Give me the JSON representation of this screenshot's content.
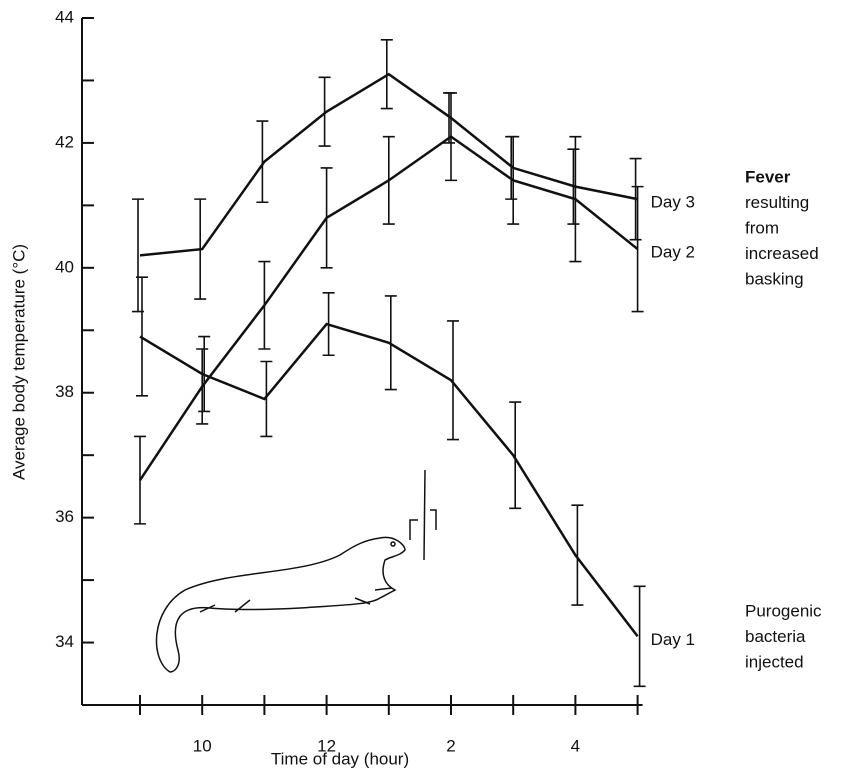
{
  "chart_data": {
    "type": "line",
    "ylabel": "Average body temperature (°C)",
    "xlabel": "Time of day (hour)",
    "categories": [
      null,
      "10",
      null,
      "12",
      null,
      "2",
      null,
      "4",
      null
    ],
    "ylim": [
      33,
      44
    ],
    "yticks": [
      34,
      36,
      38,
      40,
      42,
      44
    ],
    "yminor": [
      35,
      37,
      39,
      41,
      43
    ],
    "color": "#111111",
    "series": [
      {
        "name": "Day 3",
        "values": [
          40.2,
          40.3,
          41.7,
          42.5,
          43.1,
          42.4,
          41.6,
          41.3,
          41.1
        ],
        "errors": [
          0.9,
          0.8,
          0.65,
          0.55,
          0.55,
          0.4,
          0.5,
          0.6,
          0.65
        ]
      },
      {
        "name": "Day 2",
        "values": [
          36.6,
          38.1,
          39.4,
          40.8,
          41.4,
          42.1,
          41.4,
          41.1,
          40.3
        ],
        "errors": [
          0.7,
          0.6,
          0.7,
          0.8,
          0.7,
          0.7,
          0.7,
          1.0,
          1.0
        ]
      },
      {
        "name": "Day 1",
        "values": [
          38.9,
          38.3,
          37.9,
          39.1,
          38.8,
          38.2,
          37.0,
          35.4,
          34.1
        ],
        "errors": [
          0.95,
          0.6,
          0.6,
          0.5,
          0.75,
          0.95,
          0.85,
          0.8,
          0.8
        ]
      }
    ],
    "annotations": [
      {
        "lines": [
          "Fever",
          "resulting",
          "from",
          "increased",
          "basking"
        ]
      },
      {
        "lines": [
          "Purogenic",
          "bacteria",
          "injected"
        ]
      }
    ]
  }
}
